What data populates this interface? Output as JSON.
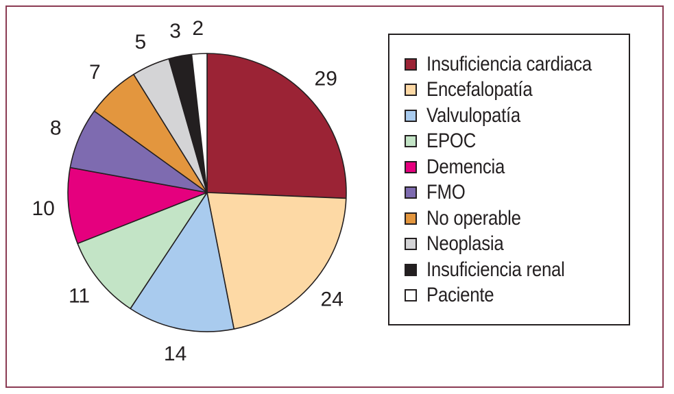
{
  "chart_data": {
    "type": "pie",
    "title": "",
    "legend_position": "right",
    "categories": [
      "Insuficiencia cardiaca",
      "Encefalopatía",
      "Valvulopatía",
      "EPOC",
      "Demencia",
      "FMO",
      "No operable",
      "Neoplasia",
      "Insuficiencia renal",
      "Paciente"
    ],
    "values": [
      29,
      24,
      14,
      11,
      10,
      8,
      7,
      5,
      3,
      2
    ],
    "labels": [
      "29",
      "24",
      "14",
      "11",
      "10",
      "8",
      "7",
      "5",
      "3",
      "2"
    ],
    "colors": [
      "#9b2335",
      "#fdd9a5",
      "#a9cbee",
      "#c3e4c6",
      "#e5007e",
      "#7e6bb0",
      "#e3963e",
      "#d4d4d6",
      "#231f20",
      "#ffffff"
    ]
  }
}
